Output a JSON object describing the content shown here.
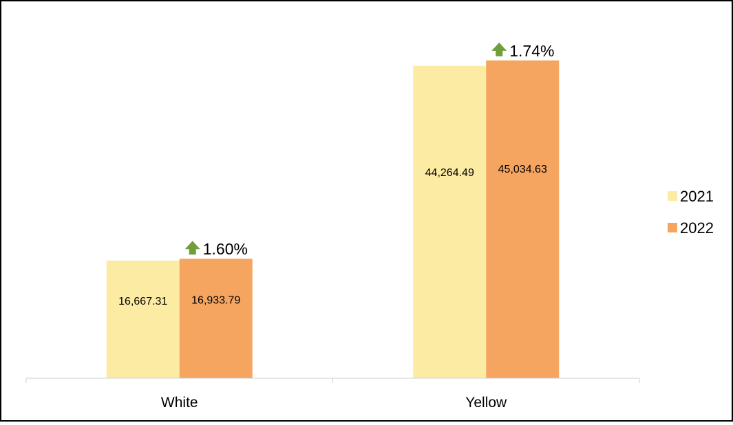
{
  "chart_data": {
    "type": "bar",
    "categories": [
      "White",
      "Yellow"
    ],
    "series": [
      {
        "name": "2021",
        "values": [
          16667.31,
          44264.49
        ],
        "labels": [
          "16,667.31",
          "44,264.49"
        ],
        "color": "#FCEBA3"
      },
      {
        "name": "2022",
        "values": [
          16933.79,
          45034.63
        ],
        "labels": [
          "16,933.79",
          "45,034.63"
        ],
        "color": "#F5A55F"
      }
    ],
    "annotations": [
      {
        "category": "White",
        "text": "1.60%",
        "icon": "arrow-up-icon"
      },
      {
        "category": "Yellow",
        "text": "1.74%",
        "icon": "arrow-up-icon"
      }
    ],
    "arrow_color": "#6F9E3A",
    "ylim": [
      0,
      45800
    ],
    "grid": false,
    "legend_position": "right"
  }
}
